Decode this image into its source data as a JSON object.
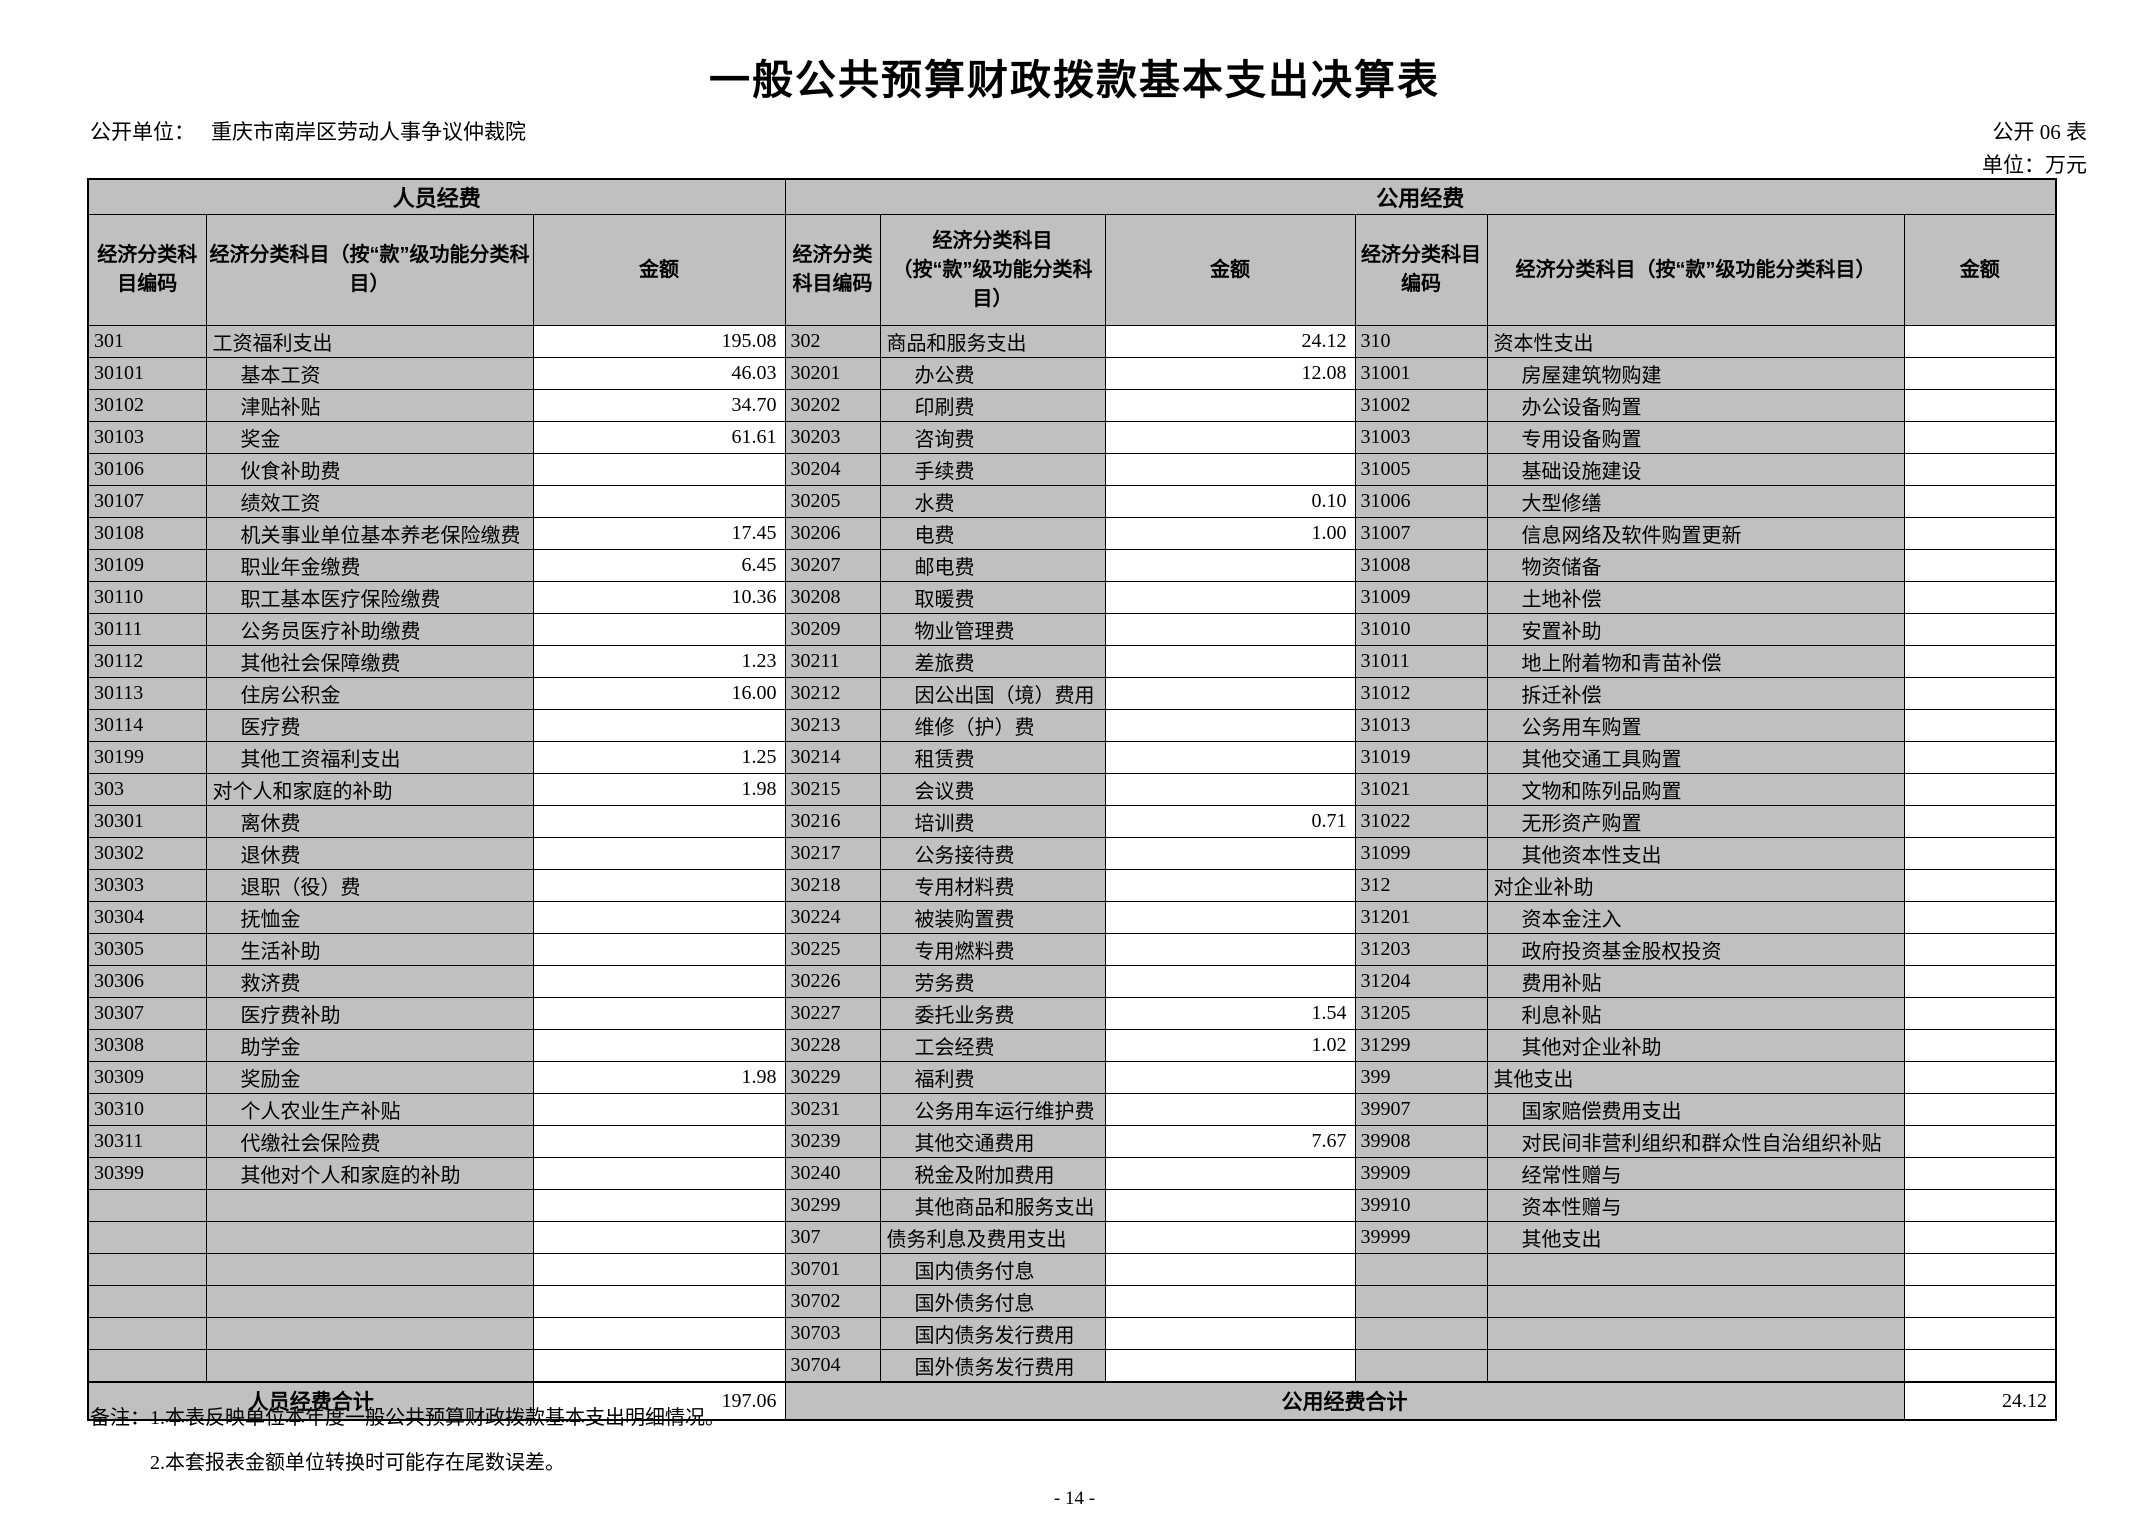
{
  "page": {
    "title": "一般公共预算财政拨款基本支出决算表",
    "unit_label": "公开单位：",
    "unit_name": "重庆市南岸区劳动人事争议仲裁院",
    "table_code": "公开 06 表",
    "unit_note": "单位：万元",
    "notes_label": "备注：",
    "notes": [
      "1.本表反映单位本年度一般公共预算财政拨款基本支出明细情况。",
      "2.本套报表金额单位转换时可能存在尾数误差。"
    ],
    "page_number": "- 14 -"
  },
  "colors": {
    "header_bg": "#c0c0c0",
    "cell_bg": "#ffffff",
    "border": "#000000"
  },
  "table": {
    "groups": [
      {
        "title": "人员经费",
        "headers": [
          "经济分类科目编码",
          "经济分类科目（按“款”级功能分类科目）",
          "金额"
        ]
      },
      {
        "title": "公用经费",
        "headers": [
          "经济分类科目编码",
          "经济分类科目（按“款”级功能分类科目）",
          "金额"
        ]
      }
    ],
    "personnel_rows": [
      [
        "301",
        "工资福利支出",
        "195.08"
      ],
      [
        "30101",
        "基本工资",
        "46.03"
      ],
      [
        "30102",
        "津贴补贴",
        "34.70"
      ],
      [
        "30103",
        "奖金",
        "61.61"
      ],
      [
        "30106",
        "伙食补助费",
        ""
      ],
      [
        "30107",
        "绩效工资",
        ""
      ],
      [
        "30108",
        "机关事业单位基本养老保险缴费",
        "17.45"
      ],
      [
        "30109",
        "职业年金缴费",
        "6.45"
      ],
      [
        "30110",
        "职工基本医疗保险缴费",
        "10.36"
      ],
      [
        "30111",
        "公务员医疗补助缴费",
        ""
      ],
      [
        "30112",
        "其他社会保障缴费",
        "1.23"
      ],
      [
        "30113",
        "住房公积金",
        "16.00"
      ],
      [
        "30114",
        "医疗费",
        ""
      ],
      [
        "30199",
        "其他工资福利支出",
        "1.25"
      ],
      [
        "303",
        "对个人和家庭的补助",
        "1.98"
      ],
      [
        "30301",
        "离休费",
        ""
      ],
      [
        "30302",
        "退休费",
        ""
      ],
      [
        "30303",
        "退职（役）费",
        ""
      ],
      [
        "30304",
        "抚恤金",
        ""
      ],
      [
        "30305",
        "生活补助",
        ""
      ],
      [
        "30306",
        "救济费",
        ""
      ],
      [
        "30307",
        "医疗费补助",
        ""
      ],
      [
        "30308",
        "助学金",
        ""
      ],
      [
        "30309",
        "奖励金",
        "1.98"
      ],
      [
        "30310",
        "个人农业生产补贴",
        ""
      ],
      [
        "30311",
        "代缴社会保险费",
        ""
      ],
      [
        "30399",
        "其他对个人和家庭的补助",
        ""
      ]
    ],
    "public_rows_left": [
      [
        "302",
        "商品和服务支出",
        "24.12"
      ],
      [
        "30201",
        "办公费",
        "12.08"
      ],
      [
        "30202",
        "印刷费",
        ""
      ],
      [
        "30203",
        "咨询费",
        ""
      ],
      [
        "30204",
        "手续费",
        ""
      ],
      [
        "30205",
        "水费",
        "0.10"
      ],
      [
        "30206",
        "电费",
        "1.00"
      ],
      [
        "30207",
        "邮电费",
        ""
      ],
      [
        "30208",
        "取暖费",
        ""
      ],
      [
        "30209",
        "物业管理费",
        ""
      ],
      [
        "30211",
        "差旅费",
        ""
      ],
      [
        "30212",
        "因公出国（境）费用",
        ""
      ],
      [
        "30213",
        "维修（护）费",
        ""
      ],
      [
        "30214",
        "租赁费",
        ""
      ],
      [
        "30215",
        "会议费",
        ""
      ],
      [
        "30216",
        "培训费",
        "0.71"
      ],
      [
        "30217",
        "公务接待费",
        ""
      ],
      [
        "30218",
        "专用材料费",
        ""
      ],
      [
        "30224",
        "被装购置费",
        ""
      ],
      [
        "30225",
        "专用燃料费",
        ""
      ],
      [
        "30226",
        "劳务费",
        ""
      ],
      [
        "30227",
        "委托业务费",
        "1.54"
      ],
      [
        "30228",
        "工会经费",
        "1.02"
      ],
      [
        "30229",
        "福利费",
        ""
      ],
      [
        "30231",
        "公务用车运行维护费",
        ""
      ],
      [
        "30239",
        "其他交通费用",
        "7.67"
      ],
      [
        "30240",
        "税金及附加费用",
        ""
      ],
      [
        "30299",
        "其他商品和服务支出",
        ""
      ],
      [
        "307",
        "债务利息及费用支出",
        ""
      ],
      [
        "30701",
        "国内债务付息",
        ""
      ],
      [
        "30702",
        "国外债务付息",
        ""
      ],
      [
        "30703",
        "国内债务发行费用",
        ""
      ],
      [
        "30704",
        "国外债务发行费用",
        ""
      ]
    ],
    "public_rows_right": [
      [
        "310",
        "资本性支出",
        ""
      ],
      [
        "31001",
        "房屋建筑物购建",
        ""
      ],
      [
        "31002",
        "办公设备购置",
        ""
      ],
      [
        "31003",
        "专用设备购置",
        ""
      ],
      [
        "31005",
        "基础设施建设",
        ""
      ],
      [
        "31006",
        "大型修缮",
        ""
      ],
      [
        "31007",
        "信息网络及软件购置更新",
        ""
      ],
      [
        "31008",
        "物资储备",
        ""
      ],
      [
        "31009",
        "土地补偿",
        ""
      ],
      [
        "31010",
        "安置补助",
        ""
      ],
      [
        "31011",
        "地上附着物和青苗补偿",
        ""
      ],
      [
        "31012",
        "拆迁补偿",
        ""
      ],
      [
        "31013",
        "公务用车购置",
        ""
      ],
      [
        "31019",
        "其他交通工具购置",
        ""
      ],
      [
        "31021",
        "文物和陈列品购置",
        ""
      ],
      [
        "31022",
        "无形资产购置",
        ""
      ],
      [
        "31099",
        "其他资本性支出",
        ""
      ],
      [
        "312",
        "对企业补助",
        ""
      ],
      [
        "31201",
        "资本金注入",
        ""
      ],
      [
        "31203",
        "政府投资基金股权投资",
        ""
      ],
      [
        "31204",
        "费用补贴",
        ""
      ],
      [
        "31205",
        "利息补贴",
        ""
      ],
      [
        "31299",
        "其他对企业补助",
        ""
      ],
      [
        "399",
        "其他支出",
        ""
      ],
      [
        "39907",
        "国家赔偿费用支出",
        ""
      ],
      [
        "39908",
        "对民间非营利组织和群众性自治组织补贴",
        ""
      ],
      [
        "39909",
        "经常性赠与",
        ""
      ],
      [
        "39910",
        "资本性赠与",
        ""
      ],
      [
        "39999",
        "其他支出",
        ""
      ]
    ],
    "totals": {
      "personnel_label": "人员经费合计",
      "personnel_value": "197.06",
      "public_label": "公用经费合计",
      "public_value": "24.12"
    }
  }
}
